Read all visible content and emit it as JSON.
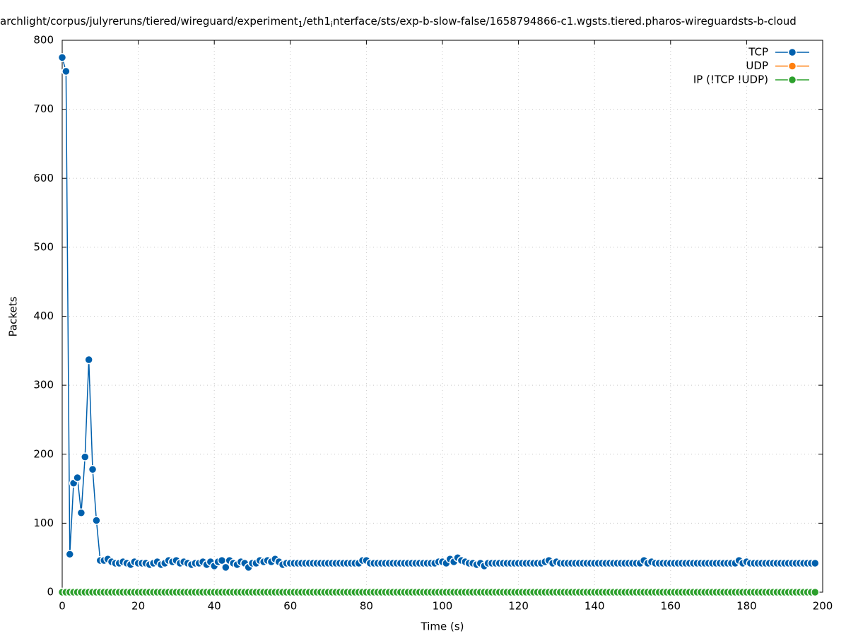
{
  "chart_data": {
    "type": "line",
    "title": [
      "archlight/corpus/julyreruns/tiered/wireguard/experiment",
      "1",
      "/eth1",
      "i",
      "nterface/sts/exp-b-slow-false/1658794866-c1.wgsts.tiered.pharos-wireguardsts-b-cloud"
    ],
    "xlabel": "Time (s)",
    "ylabel": "Packets",
    "xlim": [
      0,
      200
    ],
    "ylim": [
      0,
      800
    ],
    "xticks": [
      0,
      20,
      40,
      60,
      80,
      100,
      120,
      140,
      160,
      180,
      200
    ],
    "yticks": [
      0,
      100,
      200,
      300,
      400,
      500,
      600,
      700,
      800
    ],
    "grid": true,
    "legend": "top-right",
    "x": [
      0,
      1,
      2,
      3,
      4,
      5,
      6,
      7,
      8,
      9,
      10,
      11,
      12,
      13,
      14,
      15,
      16,
      17,
      18,
      19,
      20,
      21,
      22,
      23,
      24,
      25,
      26,
      27,
      28,
      29,
      30,
      31,
      32,
      33,
      34,
      35,
      36,
      37,
      38,
      39,
      40,
      41,
      42,
      43,
      44,
      45,
      46,
      47,
      48,
      49,
      50,
      51,
      52,
      53,
      54,
      55,
      56,
      57,
      58,
      59,
      60,
      61,
      62,
      63,
      64,
      65,
      66,
      67,
      68,
      69,
      70,
      71,
      72,
      73,
      74,
      75,
      76,
      77,
      78,
      79,
      80,
      81,
      82,
      83,
      84,
      85,
      86,
      87,
      88,
      89,
      90,
      91,
      92,
      93,
      94,
      95,
      96,
      97,
      98,
      99,
      100,
      101,
      102,
      103,
      104,
      105,
      106,
      107,
      108,
      109,
      110,
      111,
      112,
      113,
      114,
      115,
      116,
      117,
      118,
      119,
      120,
      121,
      122,
      123,
      124,
      125,
      126,
      127,
      128,
      129,
      130,
      131,
      132,
      133,
      134,
      135,
      136,
      137,
      138,
      139,
      140,
      141,
      142,
      143,
      144,
      145,
      146,
      147,
      148,
      149,
      150,
      151,
      152,
      153,
      154,
      155,
      156,
      157,
      158,
      159,
      160,
      161,
      162,
      163,
      164,
      165,
      166,
      167,
      168,
      169,
      170,
      171,
      172,
      173,
      174,
      175,
      176,
      177,
      178,
      179,
      180,
      181,
      182,
      183,
      184,
      185,
      186,
      187,
      188,
      189,
      190,
      191,
      192,
      193,
      194,
      195,
      196,
      197,
      198
    ],
    "series": [
      {
        "name": "TCP",
        "color": "#0060ad",
        "values": [
          775,
          755,
          55,
          158,
          166,
          115,
          196,
          337,
          178,
          104,
          46,
          46,
          48,
          44,
          42,
          42,
          44,
          42,
          40,
          44,
          42,
          42,
          42,
          40,
          42,
          44,
          40,
          42,
          46,
          44,
          46,
          42,
          44,
          42,
          40,
          42,
          42,
          44,
          40,
          44,
          38,
          44,
          46,
          36,
          46,
          42,
          40,
          44,
          42,
          36,
          42,
          42,
          46,
          44,
          46,
          44,
          48,
          44,
          40,
          42,
          42,
          42,
          42,
          42,
          42,
          42,
          42,
          42,
          42,
          42,
          42,
          42,
          42,
          42,
          42,
          42,
          42,
          42,
          42,
          46,
          46,
          42,
          42,
          42,
          42,
          42,
          42,
          42,
          42,
          42,
          42,
          42,
          42,
          42,
          42,
          42,
          42,
          42,
          42,
          44,
          44,
          42,
          48,
          44,
          50,
          46,
          44,
          42,
          42,
          40,
          42,
          38,
          42,
          42,
          42,
          42,
          42,
          42,
          42,
          42,
          42,
          42,
          42,
          42,
          42,
          42,
          42,
          44,
          46,
          42,
          44,
          42,
          42,
          42,
          42,
          42,
          42,
          42,
          42,
          42,
          42,
          42,
          42,
          42,
          42,
          42,
          42,
          42,
          42,
          42,
          42,
          42,
          42,
          46,
          42,
          44,
          42,
          42,
          42,
          42,
          42,
          42,
          42,
          42,
          42,
          42,
          42,
          42,
          42,
          42,
          42,
          42,
          42,
          42,
          42,
          42,
          42,
          42,
          46,
          42,
          44,
          42,
          42,
          42,
          42,
          42,
          42,
          42,
          42,
          42,
          42,
          42,
          42,
          42,
          42,
          42,
          42,
          42,
          42
        ]
      },
      {
        "name": "UDP",
        "color": "#ff7f0e",
        "values": [
          0,
          0,
          0,
          0,
          0,
          0,
          0,
          0,
          0,
          0,
          0,
          0,
          0,
          0,
          0,
          0,
          0,
          0,
          0,
          0,
          0,
          0,
          0,
          0,
          0,
          0,
          0,
          0,
          0,
          0,
          0,
          0,
          0,
          0,
          0,
          0,
          0,
          0,
          0,
          0,
          0,
          0,
          0,
          0,
          0,
          0,
          0,
          0,
          0,
          0,
          0,
          0,
          0,
          0,
          0,
          0,
          0,
          0,
          0,
          0,
          0,
          0,
          0,
          0,
          0,
          0,
          0,
          0,
          0,
          0,
          0,
          0,
          0,
          0,
          0,
          0,
          0,
          0,
          0,
          0,
          0,
          0,
          0,
          0,
          0,
          0,
          0,
          0,
          0,
          0,
          0,
          0,
          0,
          0,
          0,
          0,
          0,
          0,
          0,
          0,
          0,
          0,
          0,
          0,
          0,
          0,
          0,
          0,
          0,
          0,
          0,
          0,
          0,
          0,
          0,
          0,
          0,
          0,
          0,
          0,
          0,
          0,
          0,
          0,
          0,
          0,
          0,
          0,
          0,
          0,
          0,
          0,
          0,
          0,
          0,
          0,
          0,
          0,
          0,
          0,
          0,
          0,
          0,
          0,
          0,
          0,
          0,
          0,
          0,
          0,
          0,
          0,
          0,
          0,
          0,
          0,
          0,
          0,
          0,
          0,
          0,
          0,
          0,
          0,
          0,
          0,
          0,
          0,
          0,
          0,
          0,
          0,
          0,
          0,
          0,
          0,
          0,
          0,
          0,
          0,
          0,
          0,
          0,
          0,
          0,
          0,
          0,
          0,
          0,
          0,
          0,
          0,
          0,
          0,
          0,
          0,
          0,
          0,
          0
        ]
      },
      {
        "name": "IP (!TCP  !UDP)",
        "color": "#2ca02c",
        "values": [
          0,
          0,
          0,
          0,
          0,
          0,
          0,
          0,
          0,
          0,
          0,
          0,
          0,
          0,
          0,
          0,
          0,
          0,
          0,
          0,
          0,
          0,
          0,
          0,
          0,
          0,
          0,
          0,
          0,
          0,
          0,
          0,
          0,
          0,
          0,
          0,
          0,
          0,
          0,
          0,
          0,
          0,
          0,
          0,
          0,
          0,
          0,
          0,
          0,
          0,
          0,
          0,
          0,
          0,
          0,
          0,
          0,
          0,
          0,
          0,
          0,
          0,
          0,
          0,
          0,
          0,
          0,
          0,
          0,
          0,
          0,
          0,
          0,
          0,
          0,
          0,
          0,
          0,
          0,
          0,
          0,
          0,
          0,
          0,
          0,
          0,
          0,
          0,
          0,
          0,
          0,
          0,
          0,
          0,
          0,
          0,
          0,
          0,
          0,
          0,
          0,
          0,
          0,
          0,
          0,
          0,
          0,
          0,
          0,
          0,
          0,
          0,
          0,
          0,
          0,
          0,
          0,
          0,
          0,
          0,
          0,
          0,
          0,
          0,
          0,
          0,
          0,
          0,
          0,
          0,
          0,
          0,
          0,
          0,
          0,
          0,
          0,
          0,
          0,
          0,
          0,
          0,
          0,
          0,
          0,
          0,
          0,
          0,
          0,
          0,
          0,
          0,
          0,
          0,
          0,
          0,
          0,
          0,
          0,
          0,
          0,
          0,
          0,
          0,
          0,
          0,
          0,
          0,
          0,
          0,
          0,
          0,
          0,
          0,
          0,
          0,
          0,
          0,
          0,
          0,
          0,
          0,
          0,
          0,
          0,
          0,
          0,
          0,
          0,
          0,
          0,
          0,
          0,
          0,
          0,
          0,
          0,
          0,
          0
        ]
      }
    ]
  }
}
